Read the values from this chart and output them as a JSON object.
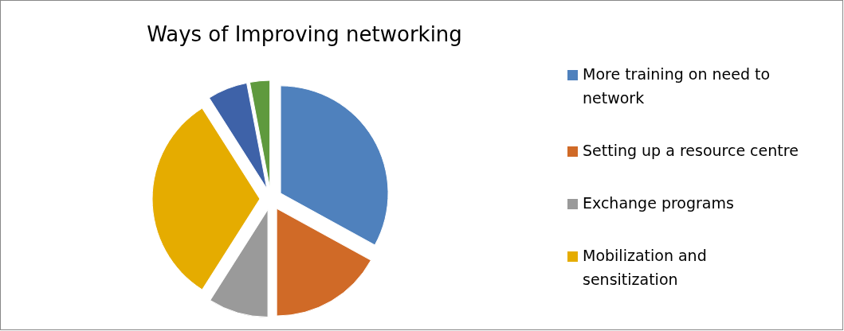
{
  "chart_data": {
    "type": "pie",
    "title": "Ways of Improving networking",
    "categories": [
      "More training on need to network",
      "Setting up a resource centre",
      "Exchange programs",
      "Mobilization and sensitization",
      null,
      null
    ],
    "values": [
      33,
      17,
      9,
      32,
      6,
      3
    ],
    "colors": [
      "#4f81bd",
      "#d06a27",
      "#9a9a9a",
      "#e5ac00",
      "#3e62a8",
      "#5f9a3e"
    ],
    "legend": "right"
  }
}
